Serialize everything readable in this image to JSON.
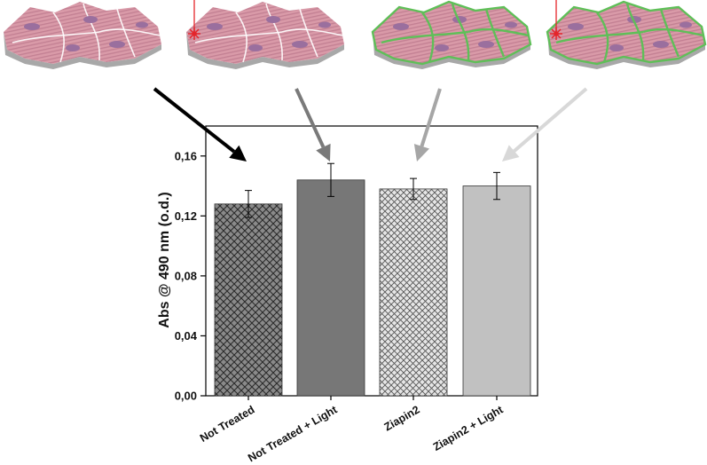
{
  "chart_data": {
    "type": "bar",
    "title": "",
    "xlabel": "",
    "ylabel": "Abs @ 490 nm (o.d.)",
    "categories": [
      "Not Treated",
      "Not Treated + Light",
      "Ziapin2",
      "Ziapin2 + Light"
    ],
    "values": [
      0.128,
      0.144,
      0.138,
      0.14
    ],
    "errors": [
      0.009,
      0.011,
      0.007,
      0.009
    ],
    "ylim": [
      0,
      0.18
    ],
    "yticks": [
      0,
      0.04,
      0.08,
      0.12,
      0.16
    ],
    "ytick_labels": [
      "0,00",
      "0,04",
      "0,08",
      "0,12",
      "0,16"
    ],
    "bar_fills": [
      {
        "style": "crosshatch",
        "base": "#8a8a8a",
        "hatch": "#2b2b2b"
      },
      {
        "style": "solid",
        "base": "#777777"
      },
      {
        "style": "crosshatch",
        "base": "#e4e4e4",
        "hatch": "#555555"
      },
      {
        "style": "solid",
        "base": "#c1c1c1"
      }
    ],
    "arrow_colors": [
      "#000000",
      "#7a7a7a",
      "#a6a6a6",
      "#d8d8d8"
    ],
    "grid": false,
    "legend": "none"
  },
  "illustrations": [
    {
      "description": "cells",
      "laser": false,
      "membrane_labelled": false
    },
    {
      "description": "cells",
      "laser": true,
      "membrane_labelled": false
    },
    {
      "description": "cells",
      "laser": false,
      "membrane_labelled": true
    },
    {
      "description": "cells",
      "laser": true,
      "membrane_labelled": true
    }
  ],
  "colors": {
    "cell_fill": "#d99aa8",
    "cell_stripe": "#c27f92",
    "nucleus": "#9a6f9e",
    "membrane_label": "#5fbf58",
    "laser": "#e4252b"
  }
}
